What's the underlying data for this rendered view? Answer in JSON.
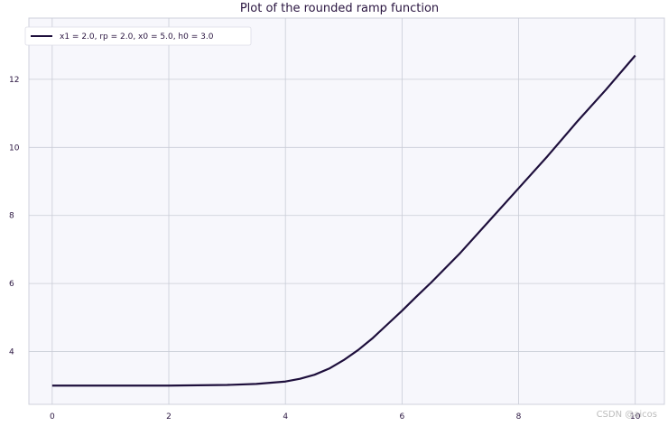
{
  "chart_data": {
    "type": "line",
    "title": "Plot of the rounded ramp function",
    "xlabel": "",
    "ylabel": "",
    "xlim": [
      -0.4,
      10.5
    ],
    "ylim": [
      2.45,
      13.8
    ],
    "xticks": [
      0,
      2,
      4,
      6,
      8,
      10
    ],
    "yticks": [
      4,
      6,
      8,
      10,
      12
    ],
    "x_tick_labels": [
      "0",
      "2",
      "4",
      "6",
      "8",
      "10"
    ],
    "y_tick_labels": [
      "4",
      "6",
      "8",
      "10",
      "12"
    ],
    "grid": true,
    "legend_position": "top-left",
    "series": [
      {
        "name": "x1 = 2.0, rp = 2.0, x0 = 5.0, h0 = 3.0",
        "color": "#1e0f3c",
        "x": [
          0,
          0.5,
          1,
          1.5,
          2,
          2.5,
          3,
          3.5,
          4,
          4.25,
          4.5,
          4.75,
          5,
          5.25,
          5.5,
          5.75,
          6,
          6.25,
          6.5,
          7,
          7.5,
          8,
          8.5,
          9,
          9.5,
          10
        ],
        "y": [
          3.0,
          3.0,
          3.0,
          3.0,
          3.0,
          3.01,
          3.02,
          3.05,
          3.12,
          3.2,
          3.32,
          3.5,
          3.75,
          4.05,
          4.4,
          4.8,
          5.2,
          5.62,
          6.03,
          6.9,
          7.85,
          8.8,
          9.75,
          10.75,
          11.7,
          12.7
        ]
      }
    ]
  },
  "watermark": "CSDN @aicos"
}
